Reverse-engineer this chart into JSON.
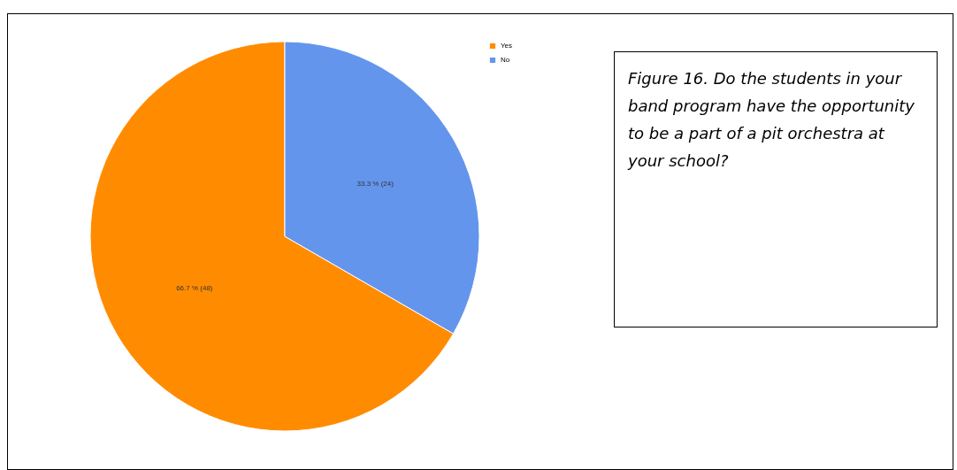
{
  "chart_data": {
    "type": "pie",
    "title": "Figure 16. Do the students in your band program have the opportunity to be a part of a pit orchestra at your school?",
    "categories": [
      "Yes",
      "No"
    ],
    "values": [
      48,
      24
    ],
    "colors": [
      "#ff8c00",
      "#6495ed"
    ],
    "value_labels": [
      "66.7 % (48)",
      "33.3 % (24)"
    ],
    "legend": "right"
  }
}
